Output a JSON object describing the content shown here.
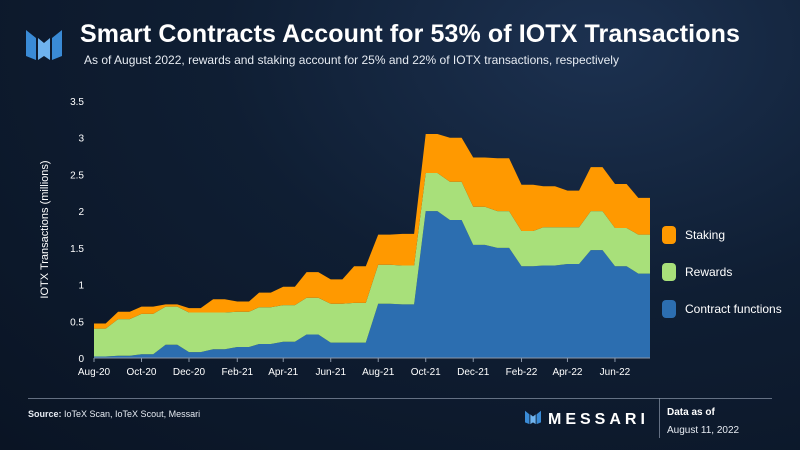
{
  "title": "Smart Contracts Account for 53% of IOTX Transactions",
  "subtitle": "As of August 2022, rewards and staking account for 25% and 22% of IOTX transactions, respectively",
  "footer": {
    "source_label": "Source:",
    "source_text": " IoTeX Scan, IoTeX Scout, Messari",
    "brand": "MESSARI",
    "data_as_of_label": "Data as of",
    "data_as_of_date": "August 11, 2022"
  },
  "colors": {
    "contract": "#2c6eb0",
    "rewards": "#a8e07a",
    "staking": "#ff9900",
    "axis_text": "#ffffff",
    "gridline": "#8a96a8"
  },
  "icons": {
    "logo": "messari-logo-icon",
    "brand": "messari-logo-icon"
  },
  "chart_data": {
    "type": "area",
    "stacked": true,
    "ylabel": "IOTX Transactions (millions)",
    "xlabel": "",
    "ylim": [
      0,
      3.5
    ],
    "yticks": [
      "0",
      "0.5",
      "1",
      "1.5",
      "2",
      "2.5",
      "3",
      "3.5"
    ],
    "x": [
      "2020-08-01",
      "2020-08-16",
      "2020-09-01",
      "2020-09-16",
      "2020-10-01",
      "2020-10-16",
      "2020-11-01",
      "2020-11-16",
      "2020-12-01",
      "2020-12-16",
      "2021-01-01",
      "2021-01-16",
      "2021-02-01",
      "2021-02-16",
      "2021-03-01",
      "2021-03-16",
      "2021-04-01",
      "2021-04-16",
      "2021-05-01",
      "2021-05-16",
      "2021-06-01",
      "2021-06-16",
      "2021-07-01",
      "2021-07-16",
      "2021-08-01",
      "2021-08-16",
      "2021-09-01",
      "2021-09-16",
      "2021-10-01",
      "2021-10-16",
      "2021-11-01",
      "2021-11-16",
      "2021-12-01",
      "2021-12-16",
      "2022-01-01",
      "2022-01-16",
      "2022-02-01",
      "2022-02-16",
      "2022-03-01",
      "2022-03-16",
      "2022-04-01",
      "2022-04-16",
      "2022-05-01",
      "2022-05-16",
      "2022-06-01",
      "2022-06-16",
      "2022-07-01",
      "2022-07-16"
    ],
    "xtick_labels": [
      {
        "date": "2020-08-01",
        "label": "Aug-20"
      },
      {
        "date": "2020-10-01",
        "label": "Oct-20"
      },
      {
        "date": "2020-12-01",
        "label": "Dec-20"
      },
      {
        "date": "2021-02-01",
        "label": "Feb-21"
      },
      {
        "date": "2021-04-01",
        "label": "Apr-21"
      },
      {
        "date": "2021-06-01",
        "label": "Jun-21"
      },
      {
        "date": "2021-08-01",
        "label": "Aug-21"
      },
      {
        "date": "2021-10-01",
        "label": "Oct-21"
      },
      {
        "date": "2021-12-01",
        "label": "Dec-21"
      },
      {
        "date": "2022-02-01",
        "label": "Feb-22"
      },
      {
        "date": "2022-04-01",
        "label": "Apr-22"
      },
      {
        "date": "2022-06-01",
        "label": "Jun-22"
      }
    ],
    "series": [
      {
        "name": "Contract functions",
        "color": "#2c6eb0",
        "values": [
          0.02,
          0.02,
          0.03,
          0.03,
          0.05,
          0.05,
          0.18,
          0.18,
          0.08,
          0.08,
          0.12,
          0.12,
          0.15,
          0.15,
          0.19,
          0.19,
          0.22,
          0.22,
          0.32,
          0.32,
          0.21,
          0.21,
          0.21,
          0.21,
          0.74,
          0.74,
          0.73,
          0.73,
          2.0,
          2.0,
          1.88,
          1.88,
          1.54,
          1.54,
          1.5,
          1.5,
          1.25,
          1.25,
          1.26,
          1.26,
          1.28,
          1.28,
          1.47,
          1.47,
          1.25,
          1.25,
          1.15,
          1.15
        ]
      },
      {
        "name": "Rewards",
        "color": "#a8e07a",
        "values": [
          0.38,
          0.38,
          0.5,
          0.5,
          0.55,
          0.55,
          0.52,
          0.52,
          0.54,
          0.54,
          0.5,
          0.5,
          0.48,
          0.48,
          0.5,
          0.5,
          0.5,
          0.5,
          0.5,
          0.5,
          0.53,
          0.53,
          0.54,
          0.54,
          0.53,
          0.53,
          0.53,
          0.53,
          0.52,
          0.52,
          0.52,
          0.52,
          0.52,
          0.52,
          0.5,
          0.5,
          0.48,
          0.48,
          0.52,
          0.52,
          0.5,
          0.5,
          0.53,
          0.53,
          0.52,
          0.52,
          0.53,
          0.53
        ]
      },
      {
        "name": "Staking",
        "color": "#ff9900",
        "values": [
          0.07,
          0.07,
          0.1,
          0.1,
          0.1,
          0.1,
          0.03,
          0.03,
          0.06,
          0.06,
          0.18,
          0.18,
          0.14,
          0.14,
          0.2,
          0.2,
          0.25,
          0.25,
          0.35,
          0.35,
          0.33,
          0.33,
          0.5,
          0.5,
          0.41,
          0.41,
          0.43,
          0.43,
          0.53,
          0.53,
          0.6,
          0.6,
          0.67,
          0.67,
          0.72,
          0.72,
          0.63,
          0.63,
          0.56,
          0.56,
          0.5,
          0.5,
          0.6,
          0.6,
          0.6,
          0.6,
          0.5,
          0.5
        ]
      }
    ],
    "legend": {
      "position": "right",
      "order": [
        "Staking",
        "Rewards",
        "Contract functions"
      ]
    },
    "grid": false
  }
}
